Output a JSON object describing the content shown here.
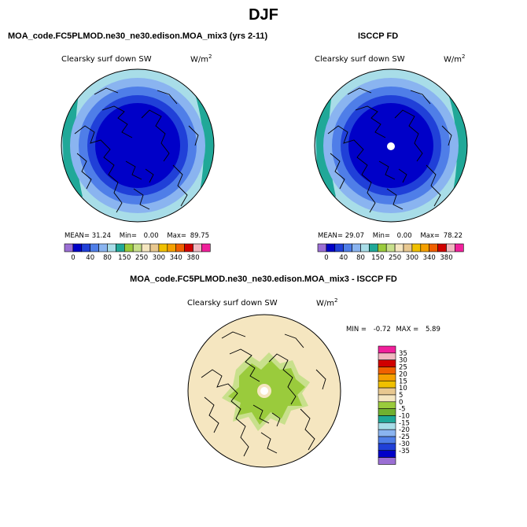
{
  "figure": {
    "season": "DJF",
    "model_title": "MOA_code.FC5PLMOD.ne30_ne30.edison.MOA_mix3 (yrs 2-11)",
    "obs_title": "ISCCP FD",
    "diff_title": "MOA_code.FC5PLMOD.ne30_ne30.edison.MOA_mix3 - ISCCP FD"
  },
  "panels": {
    "model": {
      "variable": "Clearsky surf down SW",
      "units": "W/m",
      "units_exp": "2",
      "mean_label": "MEAN=",
      "mean": "31.24",
      "min_label": "Min=",
      "min": "0.00",
      "max_label": "Max=",
      "max": "89.75"
    },
    "obs": {
      "variable": "Clearsky surf down SW",
      "units": "W/m",
      "units_exp": "2",
      "mean_label": "MEAN=",
      "mean": "29.07",
      "min_label": "Min=",
      "min": "0.00",
      "max_label": "Max=",
      "max": "78.22"
    },
    "diff": {
      "variable": "Clearsky surf down SW",
      "units": "W/m",
      "units_exp": "2",
      "min_label": "MIN =",
      "min": "-0.72",
      "max_label": "MAX =",
      "max": "5.89"
    }
  },
  "abs_colorbar": {
    "colors": [
      "#9b6fd4",
      "#0000c8",
      "#2040d8",
      "#4f7ee8",
      "#8ab4f0",
      "#a8dde8",
      "#20a898",
      "#9acb3c",
      "#c8e08c",
      "#f5e6c0",
      "#e8c890",
      "#f0c000",
      "#f5a000",
      "#f06000",
      "#d00000",
      "#f0b8c0",
      "#f0209b"
    ],
    "tick_labels": [
      "0",
      "40",
      "80",
      "150",
      "250",
      "300",
      "340",
      "380"
    ]
  },
  "diff_colorbar": {
    "colors": [
      "#9b6fd4",
      "#0000c8",
      "#2040d8",
      "#4f7ee8",
      "#8ab4f0",
      "#a8dde8",
      "#20a898",
      "#70b030",
      "#9acb3c",
      "#f5e6c0",
      "#e8c890",
      "#f0c000",
      "#f5a000",
      "#f06000",
      "#d00000",
      "#f0b8c0",
      "#f0209b"
    ],
    "tick_labels": [
      "35",
      "30",
      "25",
      "20",
      "15",
      "10",
      "5",
      "0",
      "-5",
      "-10",
      "-15",
      "-20",
      "-25",
      "-30",
      "-35"
    ]
  },
  "map_colors": {
    "ring_outer": "#a8dde8",
    "ring_mid": "#8ab4f0",
    "ring_inner": "#4f7ee8",
    "ring_core": "#2040d8",
    "core": "#0000c8",
    "edge_teal": "#20a898",
    "diff_bg": "#f5e6c0",
    "diff_light_green": "#c8e08c",
    "diff_green": "#9acb3c",
    "coast": "#000000"
  }
}
